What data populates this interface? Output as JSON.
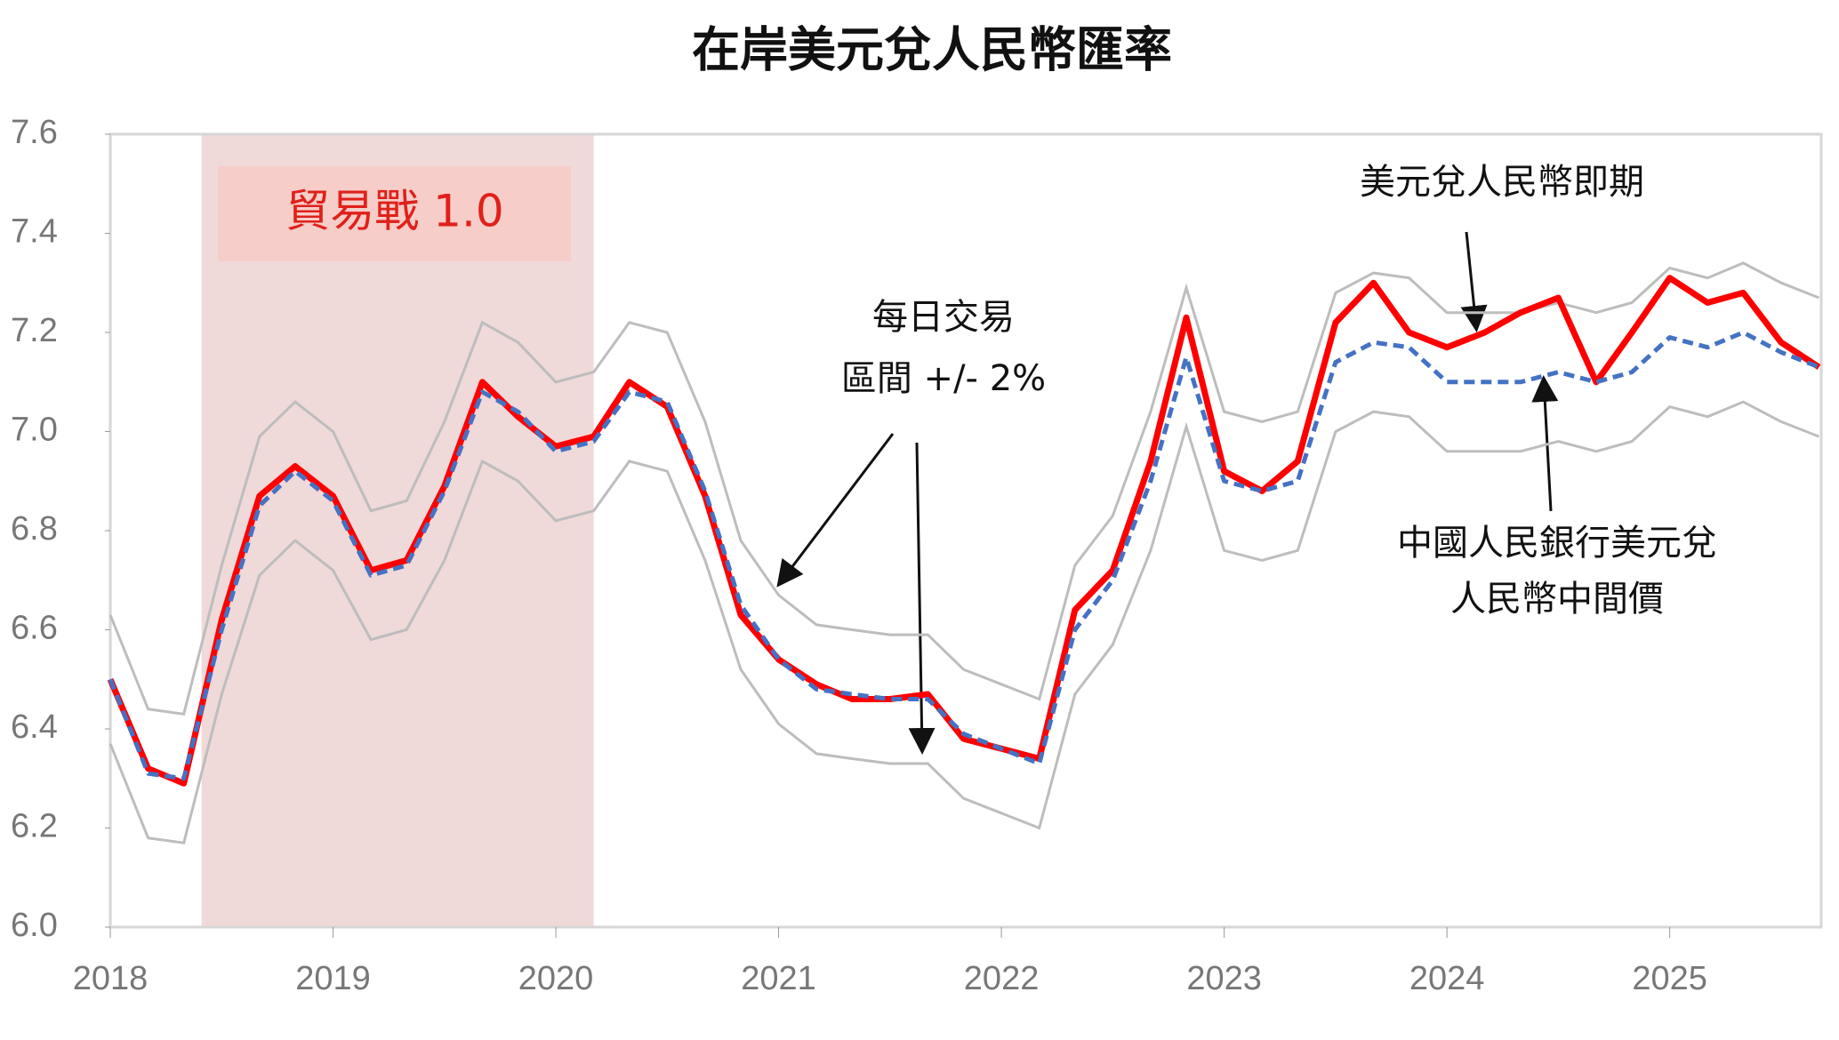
{
  "chart_data": {
    "type": "line",
    "title": "在岸美元兌人民幣匯率",
    "x": [
      2018,
      2018.17,
      2018.33,
      2018.5,
      2018.67,
      2018.83,
      2019,
      2019.17,
      2019.33,
      2019.5,
      2019.67,
      2019.83,
      2020,
      2020.17,
      2020.33,
      2020.5,
      2020.67,
      2020.83,
      2021,
      2021.17,
      2021.33,
      2021.5,
      2021.67,
      2021.83,
      2022,
      2022.17,
      2022.33,
      2022.5,
      2022.67,
      2022.83,
      2023,
      2023.17,
      2023.33,
      2023.5,
      2023.67,
      2023.83,
      2024,
      2024.17,
      2024.33,
      2024.5,
      2024.67,
      2024.83,
      2025,
      2025.17,
      2025.33,
      2025.5,
      2025.67
    ],
    "band": {
      "label": [
        "每日交易",
        "區間 +/- 2%"
      ],
      "color": "#bdbdbd",
      "upper": [
        6.63,
        6.44,
        6.43,
        6.73,
        6.99,
        7.06,
        7.0,
        6.84,
        6.86,
        7.02,
        7.22,
        7.18,
        7.1,
        7.12,
        7.22,
        7.2,
        7.02,
        6.78,
        6.67,
        6.61,
        6.6,
        6.59,
        6.59,
        6.52,
        6.49,
        6.46,
        6.73,
        6.83,
        7.04,
        7.29,
        7.04,
        7.02,
        7.04,
        7.28,
        7.32,
        7.31,
        7.24,
        7.24,
        7.24,
        7.26,
        7.24,
        7.26,
        7.33,
        7.31,
        7.34,
        7.3,
        7.27
      ],
      "lower": [
        6.37,
        6.18,
        6.17,
        6.47,
        6.71,
        6.78,
        6.72,
        6.58,
        6.6,
        6.74,
        6.94,
        6.9,
        6.82,
        6.84,
        6.94,
        6.92,
        6.74,
        6.52,
        6.41,
        6.35,
        6.34,
        6.33,
        6.33,
        6.26,
        6.23,
        6.2,
        6.47,
        6.57,
        6.76,
        7.01,
        6.76,
        6.74,
        6.76,
        7.0,
        7.04,
        7.03,
        6.96,
        6.96,
        6.96,
        6.98,
        6.96,
        6.98,
        7.05,
        7.03,
        7.06,
        7.02,
        6.99
      ]
    },
    "series": [
      {
        "name": [
          "美元兌人民幣即期"
        ],
        "color": "#ff0000",
        "values": [
          6.5,
          6.32,
          6.29,
          6.62,
          6.87,
          6.93,
          6.87,
          6.72,
          6.74,
          6.89,
          7.1,
          7.03,
          6.97,
          6.99,
          7.1,
          7.05,
          6.87,
          6.63,
          6.54,
          6.49,
          6.46,
          6.46,
          6.47,
          6.38,
          6.36,
          6.34,
          6.64,
          6.72,
          6.94,
          7.23,
          6.92,
          6.88,
          6.94,
          7.22,
          7.3,
          7.2,
          7.17,
          7.2,
          7.24,
          7.27,
          7.1,
          7.2,
          7.31,
          7.26,
          7.28,
          7.18,
          7.13
        ]
      },
      {
        "name": [
          "中國人民銀行美元兌",
          "人民幣中間價"
        ],
        "color": "#4472c4",
        "dashed": true,
        "values": [
          6.5,
          6.31,
          6.3,
          6.6,
          6.85,
          6.92,
          6.86,
          6.71,
          6.73,
          6.88,
          7.08,
          7.04,
          6.96,
          6.98,
          7.08,
          7.06,
          6.88,
          6.65,
          6.54,
          6.48,
          6.47,
          6.46,
          6.46,
          6.39,
          6.36,
          6.33,
          6.6,
          6.7,
          6.9,
          7.15,
          6.9,
          6.88,
          6.9,
          7.14,
          7.18,
          7.17,
          7.1,
          7.1,
          7.1,
          7.12,
          7.1,
          7.12,
          7.19,
          7.17,
          7.2,
          7.16,
          7.13
        ]
      }
    ],
    "shade": {
      "label": "貿易戰 1.0",
      "x": [
        2018.41,
        2020.17
      ],
      "color": "#f0d9d9"
    },
    "xlim": [
      2018,
      2025.68
    ],
    "xticks": [
      2018,
      2019,
      2020,
      2021,
      2022,
      2023,
      2024,
      2025
    ],
    "ylim": [
      6.0,
      7.6
    ],
    "yticks": [
      {
        "value": 6.0,
        "label": "6.0"
      },
      {
        "value": 6.2,
        "label": "6.2"
      },
      {
        "value": 6.4,
        "label": "6.4"
      },
      {
        "value": 6.6,
        "label": "6.6"
      },
      {
        "value": 6.8,
        "label": "6.8"
      },
      {
        "value": 7.0,
        "label": "7.0"
      },
      {
        "value": 7.2,
        "label": "7.2"
      },
      {
        "value": 7.4,
        "label": "7.4"
      },
      {
        "value": 7.6,
        "label": "7.6"
      }
    ]
  }
}
